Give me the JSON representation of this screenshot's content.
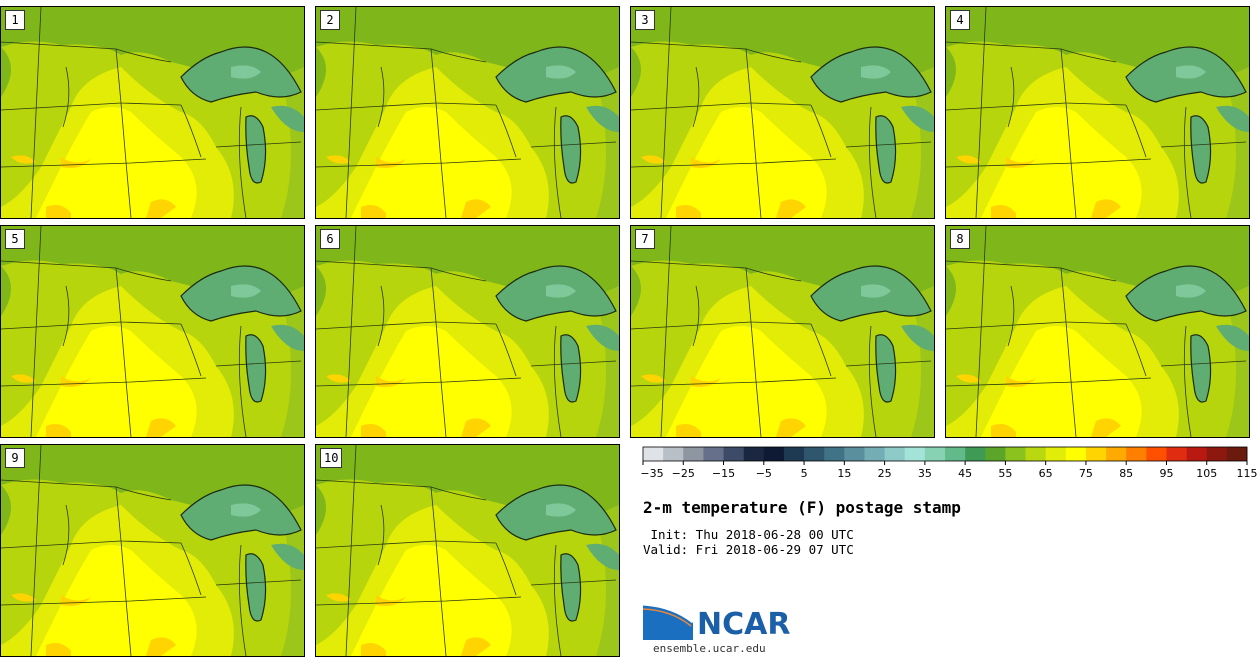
{
  "panels": [
    {
      "label": "1"
    },
    {
      "label": "2"
    },
    {
      "label": "3"
    },
    {
      "label": "4"
    },
    {
      "label": "5"
    },
    {
      "label": "6"
    },
    {
      "label": "7"
    },
    {
      "label": "8"
    },
    {
      "label": "9"
    },
    {
      "label": "10"
    }
  ],
  "colorbar": {
    "colors": [
      "#dfe3e8",
      "#b9bfc6",
      "#8e96a2",
      "#66708a",
      "#3d4a68",
      "#1b2741",
      "#0e1a33",
      "#1e3a52",
      "#2f566c",
      "#417386",
      "#5a909e",
      "#74adb4",
      "#8ecbc8",
      "#a4e3d8",
      "#86d2b2",
      "#62b98a",
      "#3f9a55",
      "#5ba52a",
      "#8cc21d",
      "#b9d80f",
      "#e1ec08",
      "#ffff00",
      "#ffd400",
      "#ffaa00",
      "#ff8000",
      "#ff5000",
      "#e02c10",
      "#b81a12",
      "#8c1810",
      "#6b1a0e"
    ],
    "ticks": [
      "−35",
      "−25",
      "−15",
      "−5",
      "5",
      "15",
      "25",
      "35",
      "45",
      "55",
      "65",
      "75",
      "85",
      "95",
      "105",
      "115"
    ]
  },
  "title": "2-m temperature (F) postage stamp",
  "init_text": " Init: Thu 2018-06-28 00 UTC",
  "valid_text": "Valid: Fri 2018-06-29 07 UTC",
  "logo": {
    "text": "NCAR",
    "url": "ensemble.ucar.edu"
  }
}
